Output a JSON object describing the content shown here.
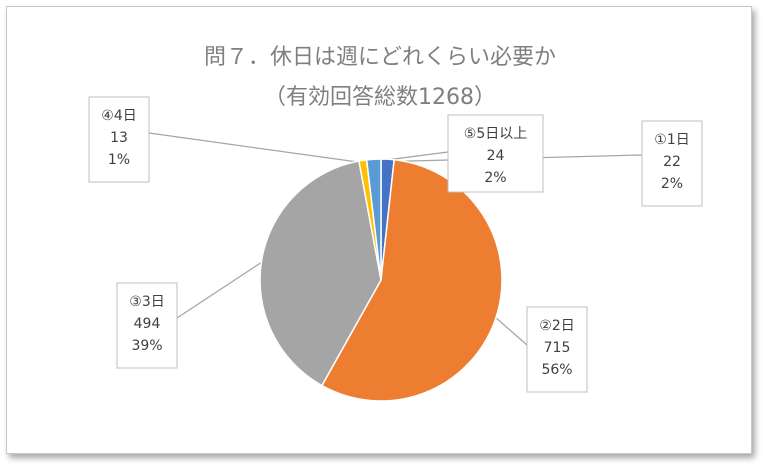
{
  "chart_data": {
    "type": "pie",
    "title": "問７．休日は週にどれくらい必要か",
    "subtitle": "（有効回答総数1268）",
    "start_angle_deg": 0,
    "slices": [
      {
        "label": "①1日",
        "count": "22",
        "percent": "2%",
        "value": 22,
        "color": "#4472C4"
      },
      {
        "label": "②2日",
        "count": "715",
        "percent": "56%",
        "value": 715,
        "color": "#ED7D31"
      },
      {
        "label": "③3日",
        "count": "494",
        "percent": "39%",
        "value": 494,
        "color": "#A5A5A5"
      },
      {
        "label": "④4日",
        "count": "13",
        "percent": "1%",
        "value": 13,
        "color": "#FFC000"
      },
      {
        "label": "⑤5日以上",
        "count": "24",
        "percent": "2%",
        "value": 24,
        "color": "#5B9BD5"
      }
    ],
    "colors": {
      "leader": "#a6a6a6",
      "label_border": "#bfbfbf",
      "text": "#404040",
      "title": "#7f7f7f"
    }
  }
}
